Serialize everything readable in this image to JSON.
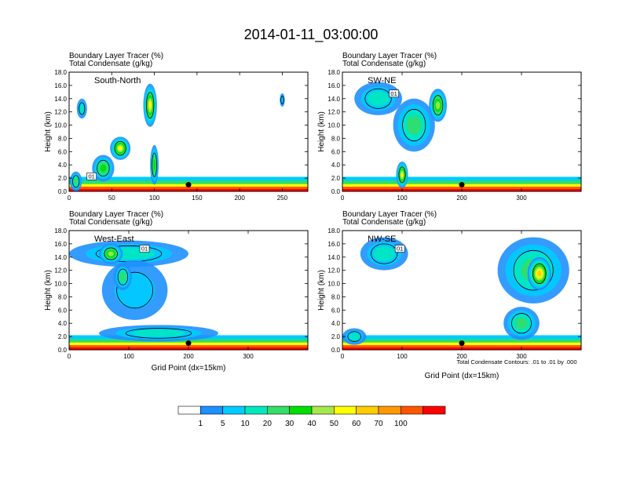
{
  "main_title": "2014-01-11_03:00:00",
  "panel_line1": "Boundary Layer Tracer   (%)",
  "panel_line2": "Total Condensate   (g/kg)",
  "ylabel": "Height (km)",
  "xlabel": "Grid Point (dx=15km)",
  "contour_note": "Total Condensate Contours: .01 to .01 by .000",
  "contour_label": "01",
  "colors": {
    "levels": [
      "#ffffff",
      "#1e90ff",
      "#00ccff",
      "#00e8c0",
      "#33dd66",
      "#00e000",
      "#a6e84a",
      "#ffff00",
      "#ffcc00",
      "#ff9900",
      "#ff5500",
      "#ff0000"
    ],
    "contour": "#000000",
    "marker": "#000000"
  },
  "colorbar": {
    "labels": [
      "1",
      "5",
      "10",
      "20",
      "30",
      "40",
      "50",
      "60",
      "70",
      "100"
    ]
  },
  "chart_data": [
    {
      "type": "heatmap",
      "label": "South-North",
      "title": "Boundary Layer Tracer (%) / Total Condensate (g/kg)",
      "xlim": [
        0,
        280
      ],
      "ylim": [
        0,
        18
      ],
      "x_ticks": [
        "0",
        "50",
        "100",
        "150",
        "200",
        "250"
      ],
      "y_ticks": [
        "0.0",
        "2.0",
        "4.0",
        "6.0",
        "8.0",
        "10.0",
        "12.0",
        "14.0",
        "16.0",
        "18.0"
      ],
      "marker": {
        "x": 140,
        "y": 1.0
      },
      "plumes": [
        {
          "x": 8,
          "y": 1.5,
          "w": 14,
          "h": 3.0,
          "level": 4
        },
        {
          "x": 40,
          "y": 3.5,
          "w": 26,
          "h": 4.0,
          "level": 5
        },
        {
          "x": 60,
          "y": 6.5,
          "w": 24,
          "h": 3.5,
          "level": 7
        },
        {
          "x": 95,
          "y": 13.0,
          "w": 16,
          "h": 6.5,
          "level": 7
        },
        {
          "x": 100,
          "y": 4.0,
          "w": 10,
          "h": 6.0,
          "level": 5
        },
        {
          "x": 15,
          "y": 12.5,
          "w": 12,
          "h": 3.0,
          "level": 3
        },
        {
          "x": 250,
          "y": 13.8,
          "w": 6,
          "h": 2.0,
          "level": 2
        }
      ]
    },
    {
      "type": "heatmap",
      "label": "SW-NE",
      "title": "Boundary Layer Tracer (%) / Total Condensate (g/kg)",
      "xlim": [
        0,
        400
      ],
      "ylim": [
        0,
        18
      ],
      "x_ticks": [
        "0",
        "100",
        "200",
        "300"
      ],
      "y_ticks": [
        "0.0",
        "2.0",
        "4.0",
        "6.0",
        "8.0",
        "10.0",
        "12.0",
        "14.0",
        "16.0",
        "18.0"
      ],
      "marker": {
        "x": 200,
        "y": 1.0
      },
      "plumes": [
        {
          "x": 60,
          "y": 14.0,
          "w": 80,
          "h": 5.0,
          "level": 3
        },
        {
          "x": 120,
          "y": 10.0,
          "w": 70,
          "h": 8.0,
          "level": 4
        },
        {
          "x": 160,
          "y": 13.0,
          "w": 30,
          "h": 5.0,
          "level": 6
        },
        {
          "x": 100,
          "y": 2.5,
          "w": 20,
          "h": 4.0,
          "level": 7
        }
      ]
    },
    {
      "type": "heatmap",
      "label": "West-East",
      "title": "Boundary Layer Tracer (%) / Total Condensate (g/kg)",
      "xlim": [
        0,
        400
      ],
      "ylim": [
        0,
        18
      ],
      "x_ticks": [
        "0",
        "100",
        "200",
        "300"
      ],
      "y_ticks": [
        "0.0",
        "2.0",
        "4.0",
        "6.0",
        "8.0",
        "10.0",
        "12.0",
        "14.0",
        "16.0",
        "18.0"
      ],
      "marker": {
        "x": 200,
        "y": 1.0
      },
      "plumes": [
        {
          "x": 100,
          "y": 14.5,
          "w": 200,
          "h": 4.0,
          "level": 3
        },
        {
          "x": 70,
          "y": 14.5,
          "w": 40,
          "h": 3.0,
          "level": 6
        },
        {
          "x": 110,
          "y": 9.0,
          "w": 110,
          "h": 9.0,
          "level": 2
        },
        {
          "x": 90,
          "y": 11.0,
          "w": 30,
          "h": 4.0,
          "level": 4
        },
        {
          "x": 150,
          "y": 2.5,
          "w": 200,
          "h": 2.5,
          "level": 3
        }
      ]
    },
    {
      "type": "heatmap",
      "label": "NW-SE",
      "title": "Boundary Layer Tracer (%) / Total Condensate (g/kg)",
      "xlim": [
        0,
        400
      ],
      "ylim": [
        0,
        18
      ],
      "x_ticks": [
        "0",
        "100",
        "200",
        "300"
      ],
      "y_ticks": [
        "0.0",
        "2.0",
        "4.0",
        "6.0",
        "8.0",
        "10.0",
        "12.0",
        "14.0",
        "16.0",
        "18.0"
      ],
      "marker": {
        "x": 200,
        "y": 1.0
      },
      "plumes": [
        {
          "x": 70,
          "y": 14.5,
          "w": 80,
          "h": 5.0,
          "level": 3
        },
        {
          "x": 320,
          "y": 12.0,
          "w": 120,
          "h": 10.0,
          "level": 4
        },
        {
          "x": 330,
          "y": 11.5,
          "w": 40,
          "h": 5.0,
          "level": 8
        },
        {
          "x": 300,
          "y": 4.0,
          "w": 60,
          "h": 5.0,
          "level": 4
        },
        {
          "x": 20,
          "y": 2.0,
          "w": 40,
          "h": 2.5,
          "level": 3
        }
      ]
    }
  ]
}
